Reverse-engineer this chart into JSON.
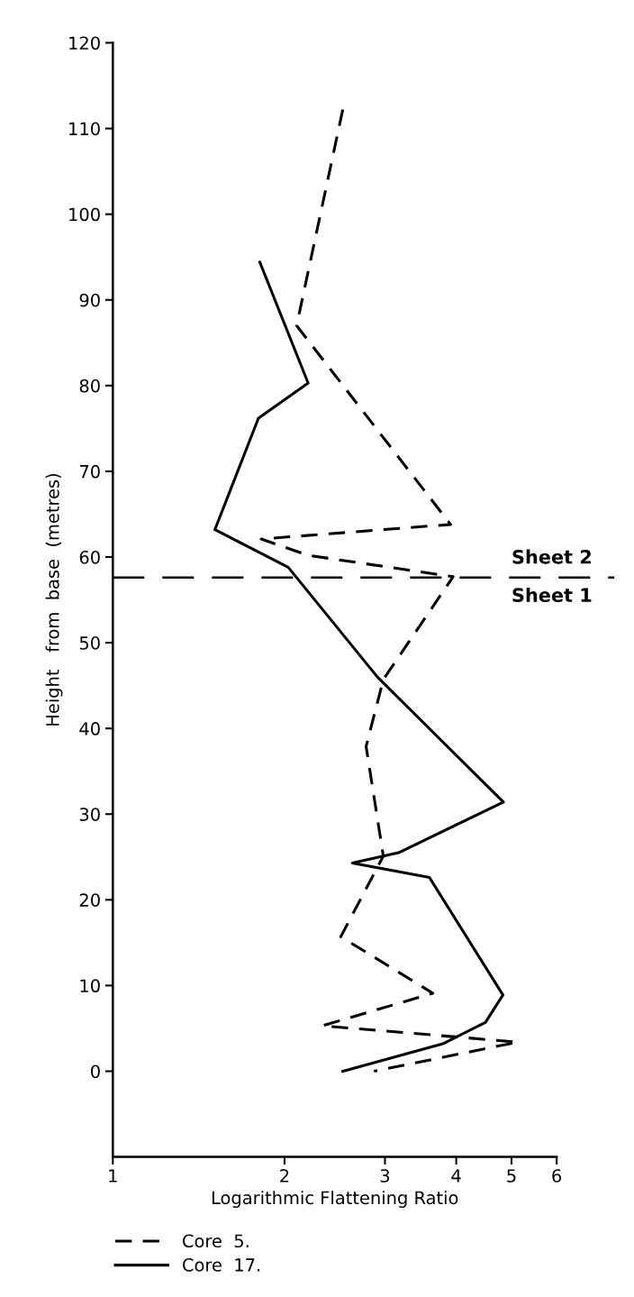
{
  "chart_data": {
    "type": "line",
    "xlabel": "Logarithmic Flattening Ratio",
    "ylabel": "Height   from  base  (metres)",
    "log": "x",
    "xlim": [
      1,
      6
    ],
    "xticks": [
      1,
      2,
      3,
      4,
      5,
      6
    ],
    "ylim": [
      -10,
      120
    ],
    "yticks": [
      0,
      10,
      20,
      30,
      40,
      50,
      60,
      70,
      80,
      90,
      100,
      110,
      120
    ],
    "grid": false,
    "legend": "bottom left",
    "marker": "none",
    "series": [
      {
        "name": "Core  5.",
        "color": "#000000",
        "line_style": "dashed",
        "x": [
          2.53,
          2.1,
          3.91,
          1.82,
          2.2,
          3.95,
          2.98,
          2.78,
          2.98,
          2.51,
          3.64,
          2.33,
          5.13,
          2.87
        ],
        "values": [
          112.2,
          87.0,
          63.8,
          62.1,
          60.2,
          57.7,
          45.7,
          37.9,
          25.1,
          15.7,
          9.1,
          5.3,
          3.4,
          0
        ]
      },
      {
        "name": "Core  17.",
        "color": "#000000",
        "line_style": "solid",
        "x": [
          1.81,
          2.2,
          1.8,
          1.51,
          2.03,
          2.91,
          4.84,
          3.17,
          2.63,
          3.59,
          4.83,
          4.5,
          3.79,
          2.53
        ],
        "values": [
          94.4,
          80.3,
          76.2,
          63.2,
          58.8,
          46.0,
          31.4,
          25.5,
          24.3,
          22.6,
          8.9,
          5.7,
          3.2,
          0
        ]
      }
    ],
    "ref_lines": [
      {
        "axis": "y",
        "value": 57.6,
        "line_style": "dashed",
        "color": "#000000"
      }
    ],
    "annotations": [
      {
        "text": "Sheet 2",
        "x": 5,
        "y": 57.6
      },
      {
        "text": "Sheet 1",
        "x": 5,
        "y": 57.6
      }
    ]
  }
}
